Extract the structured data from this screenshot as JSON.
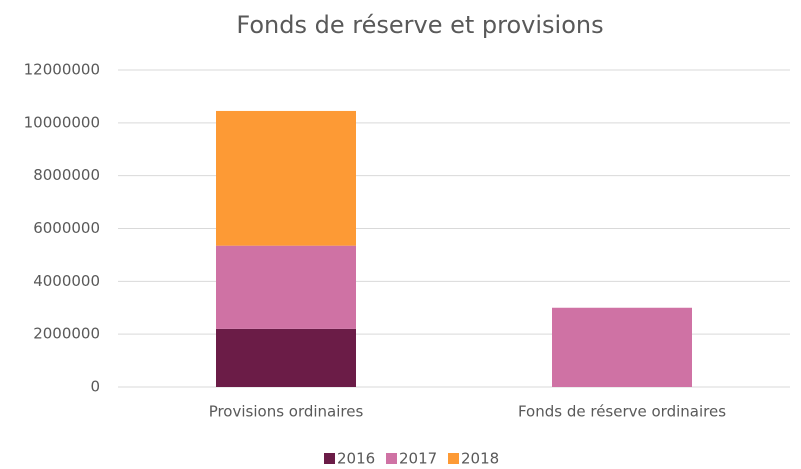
{
  "chart_data": {
    "type": "stacked_bar",
    "title": "Fonds de réserve et provisions",
    "categories": [
      "Provisions ordinaires",
      "Fonds de réserve ordinaires"
    ],
    "series": [
      {
        "name": "2016",
        "color": "#6b1c47",
        "values": [
          2200000,
          0
        ]
      },
      {
        "name": "2017",
        "color": "#cf72a4",
        "values": [
          3150000,
          3000000
        ]
      },
      {
        "name": "2018",
        "color": "#fd9a35",
        "values": [
          5100000,
          0
        ]
      }
    ],
    "ylim": [
      0,
      12000000
    ],
    "yticks": [
      0,
      2000000,
      4000000,
      6000000,
      8000000,
      10000000,
      12000000
    ],
    "grid": true,
    "legend": "bottom"
  }
}
